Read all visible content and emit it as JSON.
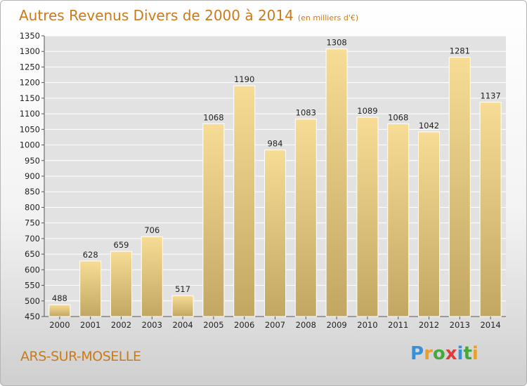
{
  "header": {
    "title": "Autres Revenus Divers de 2000 à 2014",
    "subtitle": "(en milliers d'€)"
  },
  "footer": {
    "city": "ARS-SUR-MOSELLE",
    "brand": "Proxiti"
  },
  "colors": {
    "title": "#c97a1a",
    "bar_light": "#f7dc95",
    "bar_dark": "#c2a763",
    "plot_bg": "#e2e2e2",
    "grid": "#ffffff"
  },
  "chart_data": {
    "type": "bar",
    "title": "Autres Revenus Divers de 2000 à 2014",
    "subtitle": "(en milliers d'€)",
    "categories": [
      "2000",
      "2001",
      "2002",
      "2003",
      "2004",
      "2005",
      "2006",
      "2007",
      "2008",
      "2009",
      "2010",
      "2011",
      "2012",
      "2013",
      "2014"
    ],
    "values": [
      488,
      628,
      659,
      706,
      517,
      1068,
      1190,
      984,
      1083,
      1308,
      1089,
      1068,
      1042,
      1281,
      1137
    ],
    "ylim": [
      450,
      1350
    ],
    "ytick_step": 50,
    "grid": true
  }
}
